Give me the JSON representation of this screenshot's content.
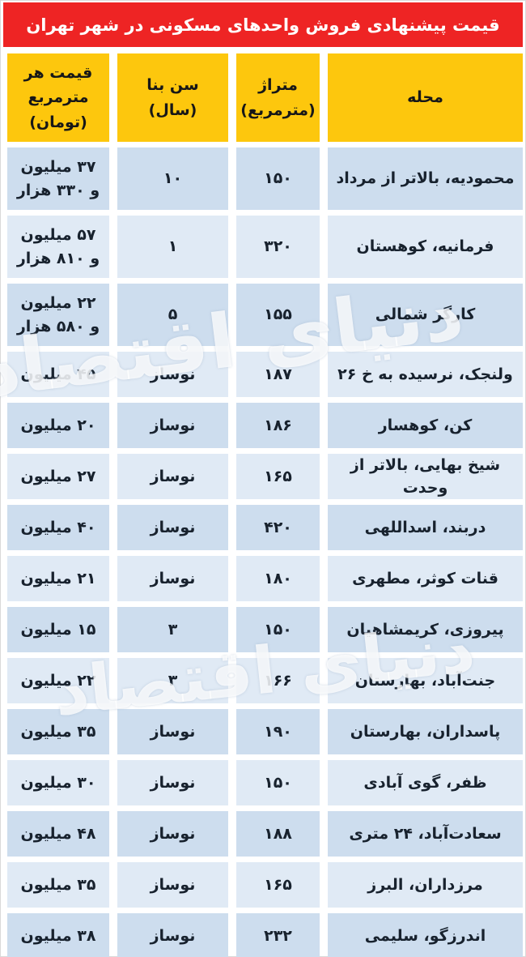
{
  "title": "قیمت پیشنهادی فروش واحدهای مسکونی در شهر تهران",
  "columns": {
    "neighborhood": "محله",
    "area": "متراژ\n(مترمربع)",
    "age": "سن بنا (سال)",
    "price": "قیمت هر\nمترمربع\n(تومان)"
  },
  "watermark": "دنیای اقتصاد",
  "colors": {
    "header_red": "#ee2424",
    "header_yellow": "#fdc70d",
    "row_dark": "#cdddee",
    "row_light": "#e0eaf5"
  },
  "rows": [
    {
      "neighborhood": "محمودیه، بالاتر از مرداد",
      "area": "۱۵۰",
      "age": "۱۰",
      "price": "۳۷ میلیون و ۳۳۰ هزار"
    },
    {
      "neighborhood": "فرمانیه، کوهستان",
      "area": "۳۲۰",
      "age": "۱",
      "price": "۵۷ میلیون و ۸۱۰ هزار"
    },
    {
      "neighborhood": "کارگر شمالی",
      "area": "۱۵۵",
      "age": "۵",
      "price": "۲۲ میلیون و ۵۸۰ هزار"
    },
    {
      "neighborhood": "ولنجک، نرسیده به خ ۲۶",
      "area": "۱۸۷",
      "age": "نوساز",
      "price": "۴۵ میلیون"
    },
    {
      "neighborhood": "کن، کوهسار",
      "area": "۱۸۶",
      "age": "نوساز",
      "price": "۲۰ میلیون"
    },
    {
      "neighborhood": "شیخ بهایی، بالاتر از وحدت",
      "area": "۱۶۵",
      "age": "نوساز",
      "price": "۲۷ میلیون"
    },
    {
      "neighborhood": "دربند، اسداللهی",
      "area": "۴۲۰",
      "age": "نوساز",
      "price": "۴۰ میلیون"
    },
    {
      "neighborhood": "قنات کوثر، مطهری",
      "area": "۱۸۰",
      "age": "نوساز",
      "price": "۲۱ میلیون"
    },
    {
      "neighborhood": "پیروزی، کریمشاهیان",
      "area": "۱۵۰",
      "age": "۳",
      "price": "۱۵ میلیون"
    },
    {
      "neighborhood": "جنت‌آباد، بهارستان",
      "area": "۱۶۶",
      "age": "۳",
      "price": "۲۲ میلیون"
    },
    {
      "neighborhood": "پاسداران، بهارستان",
      "area": "۱۹۰",
      "age": "نوساز",
      "price": "۳۵ میلیون"
    },
    {
      "neighborhood": "ظفر، گوی آبادی",
      "area": "۱۵۰",
      "age": "نوساز",
      "price": "۳۰ میلیون"
    },
    {
      "neighborhood": "سعادت‌آباد، ۲۴ متری",
      "area": "۱۸۸",
      "age": "نوساز",
      "price": "۴۸ میلیون"
    },
    {
      "neighborhood": "مرزداران، البرز",
      "area": "۱۶۵",
      "age": "نوساز",
      "price": "۳۵ میلیون"
    },
    {
      "neighborhood": "اندرزگو، سلیمی",
      "area": "۲۳۲",
      "age": "نوساز",
      "price": "۳۸ میلیون"
    }
  ]
}
